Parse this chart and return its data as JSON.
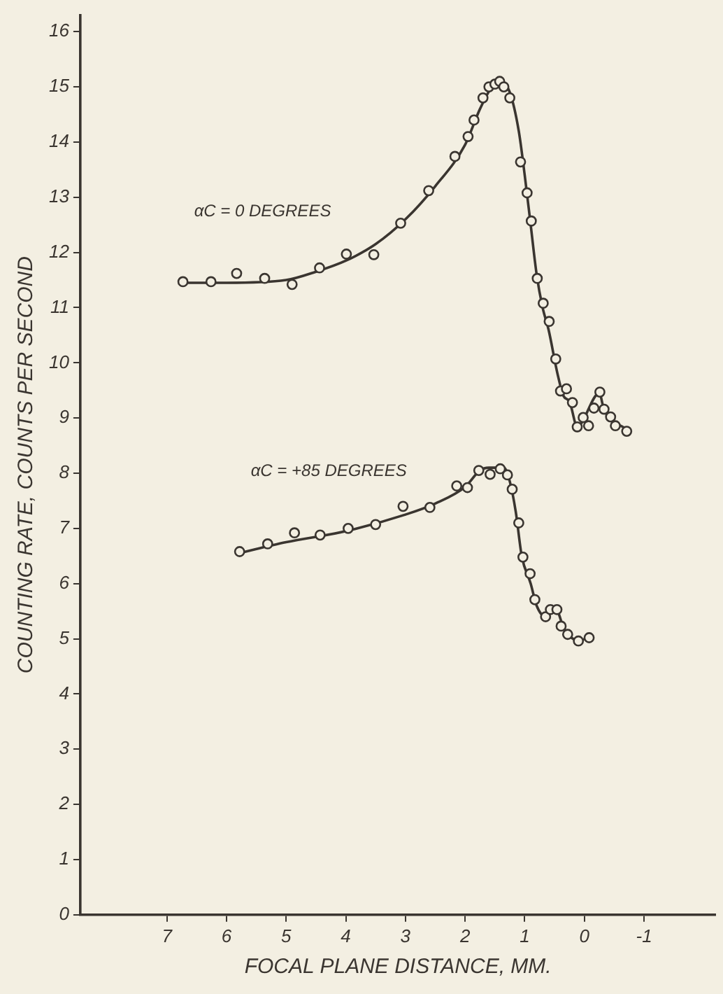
{
  "chart_data": {
    "type": "scatter",
    "xlabel": "FOCAL PLANE DISTANCE, MM.",
    "ylabel": "COUNTING RATE, COUNTS PER SECOND",
    "xlim": [
      8.45,
      -2.2
    ],
    "xticks": [
      7,
      6,
      5,
      4,
      3,
      2,
      1,
      0,
      -1
    ],
    "ylim": [
      0,
      16.3
    ],
    "yticks": [
      0,
      1,
      2,
      3,
      4,
      5,
      6,
      7,
      8,
      9,
      10,
      11,
      12,
      13,
      14,
      15,
      16
    ],
    "grid": false,
    "legend": false,
    "line_style": "solid",
    "series": [
      {
        "name": "αC = 0 DEGREES",
        "marker": "circle",
        "color": "#3a3530",
        "x": [
          6.73,
          6.26,
          5.83,
          5.36,
          4.9,
          4.44,
          3.99,
          3.53,
          3.08,
          2.61,
          2.17,
          1.95,
          1.85,
          1.7,
          1.6,
          1.5,
          1.42,
          1.35,
          1.25,
          1.07,
          0.96,
          0.89,
          0.79,
          0.69,
          0.59,
          0.48,
          0.4,
          0.3,
          0.2,
          0.12,
          0.02,
          -0.07,
          -0.16,
          -0.26,
          -0.33,
          -0.44,
          -0.52,
          -0.71
        ],
        "values": [
          11.47,
          11.47,
          11.62,
          11.53,
          11.42,
          11.72,
          11.97,
          11.96,
          12.53,
          13.12,
          13.74,
          14.1,
          14.4,
          14.8,
          15.0,
          15.05,
          15.1,
          15.0,
          14.8,
          13.64,
          13.08,
          12.57,
          11.53,
          11.08,
          10.75,
          10.07,
          9.49,
          9.53,
          9.28,
          8.84,
          9.01,
          8.86,
          9.18,
          9.47,
          9.16,
          9.02,
          8.86,
          8.76
        ]
      },
      {
        "type": "line",
        "marker": "none",
        "color": "#3a3530",
        "x": [
          6.8,
          6,
          5,
          4.5,
          4,
          3.5,
          3,
          2.5,
          2,
          1.75,
          1.55,
          1.4,
          1.25,
          1.1,
          1,
          0.9,
          0.8,
          0.7,
          0.6,
          0.45,
          0.35,
          0.25,
          0.12,
          -0.25,
          -0.33,
          -0.7
        ],
        "values": [
          11.45,
          11.45,
          11.5,
          11.65,
          11.85,
          12.15,
          12.6,
          13.2,
          13.95,
          14.6,
          15.0,
          15.1,
          14.9,
          14.2,
          13.4,
          12.5,
          11.6,
          11.0,
          10.6,
          9.8,
          9.4,
          9.3,
          8.85,
          9.45,
          9.15,
          8.8
        ]
      },
      {
        "name": "αC = +85 DEGREES",
        "marker": "circle",
        "color": "#3a3530",
        "x": [
          5.78,
          5.31,
          4.86,
          4.43,
          3.96,
          3.5,
          3.04,
          2.59,
          2.14,
          1.96,
          1.77,
          1.58,
          1.41,
          1.29,
          1.21,
          1.1,
          1.03,
          0.91,
          0.83,
          0.65,
          0.57,
          0.46,
          0.39,
          0.28,
          0.1,
          -0.08
        ],
        "values": [
          6.58,
          6.72,
          6.92,
          6.88,
          7.0,
          7.07,
          7.4,
          7.38,
          7.77,
          7.74,
          8.05,
          7.98,
          8.08,
          7.97,
          7.71,
          7.1,
          6.48,
          6.18,
          5.71,
          5.4,
          5.53,
          5.53,
          5.23,
          5.08,
          4.96,
          5.02
        ]
      },
      {
        "type": "line",
        "marker": "none",
        "color": "#3a3530",
        "x": [
          5.8,
          5,
          4,
          3,
          2.5,
          2,
          1.75,
          1.6,
          1.35,
          1.25,
          1.15,
          1.05,
          0.9,
          0.8,
          0.65,
          0.55,
          0.45,
          0.35,
          0.25,
          0.1,
          -0.08
        ],
        "values": [
          6.55,
          6.75,
          6.95,
          7.25,
          7.45,
          7.75,
          8.05,
          8.1,
          8.1,
          7.85,
          7.3,
          6.5,
          6.0,
          5.6,
          5.4,
          5.55,
          5.5,
          5.2,
          5.05,
          4.97,
          5.02
        ]
      }
    ]
  }
}
